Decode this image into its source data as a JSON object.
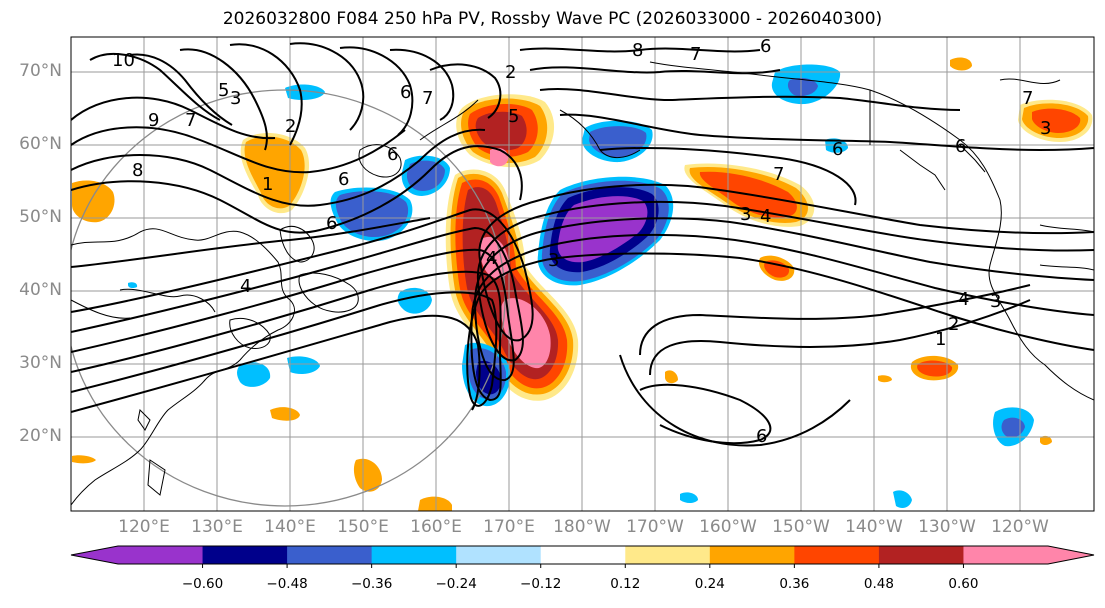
{
  "title": "2026032800 F084 250 hPa PV, Rossby Wave PC (2026033000 - 2026040300)",
  "map": {
    "lat_labels": [
      "70°N",
      "60°N",
      "50°N",
      "40°N",
      "30°N",
      "20°N"
    ],
    "lon_labels": [
      "120°E",
      "130°E",
      "140°E",
      "150°E",
      "160°E",
      "170°E",
      "180°W",
      "170°W",
      "160°W",
      "150°W",
      "140°W",
      "130°W",
      "120°W"
    ],
    "contour_labels": [
      "10",
      "9",
      "8",
      "7",
      "6",
      "5",
      "4",
      "3",
      "2",
      "1",
      "6",
      "7",
      "6",
      "6",
      "5",
      "4",
      "3",
      "4",
      "3",
      "2",
      "1",
      "6",
      "7",
      "8",
      "7",
      "6",
      "6",
      "7",
      "3",
      "4",
      "6",
      "3",
      "2"
    ]
  },
  "colorbar": {
    "colors": [
      "#9933cc",
      "#00008b",
      "#3a5fcd",
      "#00bfff",
      "#b0e2ff",
      "#ffffff",
      "#ffe98a",
      "#ffa500",
      "#ff4500",
      "#b22222",
      "#ff85aa"
    ],
    "ticks": [
      "−0.60",
      "−0.48",
      "−0.36",
      "−0.24",
      "−0.12",
      "0.12",
      "0.24",
      "0.36",
      "0.48",
      "0.60"
    ]
  }
}
